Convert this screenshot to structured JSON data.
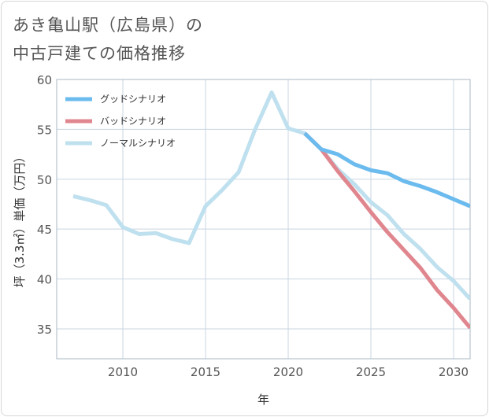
{
  "title_line1": "あき亀山駅（広島県）の",
  "title_line2": "中古戸建ての価格推移",
  "chart_data": {
    "type": "line",
    "xlabel": "年",
    "ylabel": "坪（3.3㎡）単価（万円）",
    "xlim": [
      2006,
      2031
    ],
    "ylim": [
      32,
      60
    ],
    "xticks": [
      2010,
      2015,
      2020,
      2025,
      2030
    ],
    "yticks": [
      35,
      40,
      45,
      50,
      55,
      60
    ],
    "grid": true,
    "legend_position": "top-left",
    "series": [
      {
        "name": "グッドシナリオ",
        "color": "#6cbbee",
        "x": [
          2021,
          2022,
          2023,
          2024,
          2025,
          2026,
          2027,
          2028,
          2029,
          2030,
          2031
        ],
        "y": [
          54.6,
          53.0,
          52.5,
          51.5,
          50.9,
          50.6,
          49.8,
          49.3,
          48.7,
          48.0,
          47.3
        ]
      },
      {
        "name": "バッドシナリオ",
        "color": "#e0868e",
        "x": [
          2021,
          2022,
          2023,
          2024,
          2025,
          2026,
          2027,
          2028,
          2029,
          2030,
          2031
        ],
        "y": [
          54.6,
          53.0,
          50.8,
          48.8,
          46.7,
          44.7,
          42.9,
          41.1,
          38.9,
          37.1,
          35.1
        ]
      },
      {
        "name": "ノーマルシナリオ",
        "color": "#bfe0ee",
        "x": [
          2007,
          2008,
          2009,
          2010,
          2011,
          2012,
          2013,
          2014,
          2015,
          2016,
          2017,
          2018,
          2019,
          2020,
          2021,
          2022,
          2023,
          2024,
          2025,
          2026,
          2027,
          2028,
          2029,
          2030,
          2031
        ],
        "y": [
          48.3,
          47.9,
          47.4,
          45.2,
          44.5,
          44.6,
          44.0,
          43.6,
          47.3,
          48.9,
          50.7,
          55.0,
          58.7,
          55.1,
          54.6,
          53.0,
          51.0,
          49.5,
          47.7,
          46.4,
          44.5,
          43.0,
          41.2,
          39.8,
          38.0
        ]
      }
    ]
  }
}
